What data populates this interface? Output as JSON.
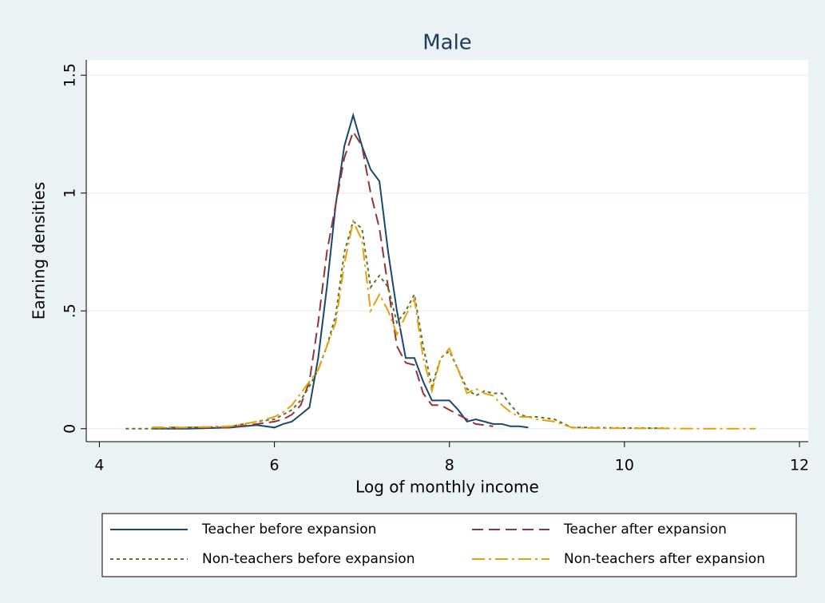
{
  "chart_data": {
    "type": "line",
    "title": "Male",
    "x_label": "Log of monthly income",
    "y_label": "Earning densities",
    "xlim": [
      3.85,
      12.1
    ],
    "ylim": [
      -0.055,
      1.565
    ],
    "xticks": [
      4,
      6,
      8,
      10,
      12
    ],
    "yticks": [
      0,
      {
        "value": 0.5,
        "label": ".5"
      },
      1,
      1.5
    ],
    "grid": true,
    "x": [
      4.3,
      4.6,
      5.0,
      5.5,
      5.8,
      6.0,
      6.1,
      6.2,
      6.3,
      6.4,
      6.5,
      6.6,
      6.7,
      6.8,
      6.9,
      7.0,
      7.1,
      7.2,
      7.3,
      7.4,
      7.5,
      7.6,
      7.7,
      7.8,
      7.9,
      8.0,
      8.1,
      8.2,
      8.3,
      8.4,
      8.5,
      8.6,
      8.7,
      8.8,
      8.9,
      9.0,
      9.2,
      9.4,
      9.6,
      10.0,
      10.5,
      11.0,
      11.5
    ],
    "series": [
      {
        "name": "Teacher before expansion",
        "color": "#1a476f",
        "dash": "solid",
        "values": [
          null,
          0,
          0,
          0.005,
          0.015,
          0.005,
          0.02,
          0.03,
          0.06,
          0.09,
          0.3,
          0.6,
          0.95,
          1.2,
          1.33,
          1.2,
          1.1,
          1.05,
          0.75,
          0.5,
          0.3,
          0.3,
          0.2,
          0.12,
          0.12,
          0.12,
          0.08,
          0.03,
          0.04,
          0.03,
          0.02,
          0.02,
          0.01,
          0.01,
          0.005,
          null,
          null,
          null,
          null,
          null,
          null,
          null,
          null
        ]
      },
      {
        "name": "Teacher after expansion",
        "color": "#90353b",
        "dash": "long",
        "values": [
          null,
          0.005,
          0.005,
          0.005,
          0.02,
          0.03,
          0.04,
          0.06,
          0.1,
          0.2,
          0.45,
          0.75,
          0.95,
          1.15,
          1.26,
          1.2,
          1.0,
          0.85,
          0.6,
          0.35,
          0.28,
          0.27,
          0.15,
          0.1,
          0.1,
          0.08,
          0.06,
          0.04,
          0.02,
          0.015,
          0.01,
          null,
          null,
          null,
          null,
          null,
          null,
          null,
          null,
          null,
          null,
          null,
          null
        ]
      },
      {
        "name": "Non-teachers before expansion",
        "color": "#55752f",
        "dash": "short",
        "values": [
          0,
          0,
          0.005,
          0.01,
          0.03,
          0.04,
          0.06,
          0.08,
          0.12,
          0.18,
          0.25,
          0.35,
          0.48,
          0.75,
          0.88,
          0.85,
          0.6,
          0.65,
          0.6,
          0.45,
          0.5,
          0.57,
          0.35,
          0.18,
          0.3,
          0.33,
          0.25,
          0.17,
          0.14,
          0.16,
          0.15,
          0.15,
          0.1,
          0.06,
          0.05,
          0.05,
          0.04,
          0.005,
          0.005,
          0.003,
          0.002,
          null,
          null
        ]
      },
      {
        "name": "Non-teachers after expansion",
        "color": "#e8a00a",
        "dash": "dashdot",
        "values": [
          null,
          0.005,
          0.005,
          0.01,
          0.03,
          0.05,
          0.07,
          0.1,
          0.15,
          0.2,
          0.25,
          0.35,
          0.45,
          0.7,
          0.88,
          0.8,
          0.5,
          0.57,
          0.5,
          0.4,
          0.48,
          0.55,
          0.3,
          0.16,
          0.3,
          0.34,
          0.25,
          0.15,
          0.17,
          0.15,
          0.14,
          0.1,
          0.07,
          0.05,
          0.05,
          0.04,
          0.03,
          0.005,
          0.003,
          0.002,
          0.001,
          0,
          0
        ]
      }
    ]
  }
}
